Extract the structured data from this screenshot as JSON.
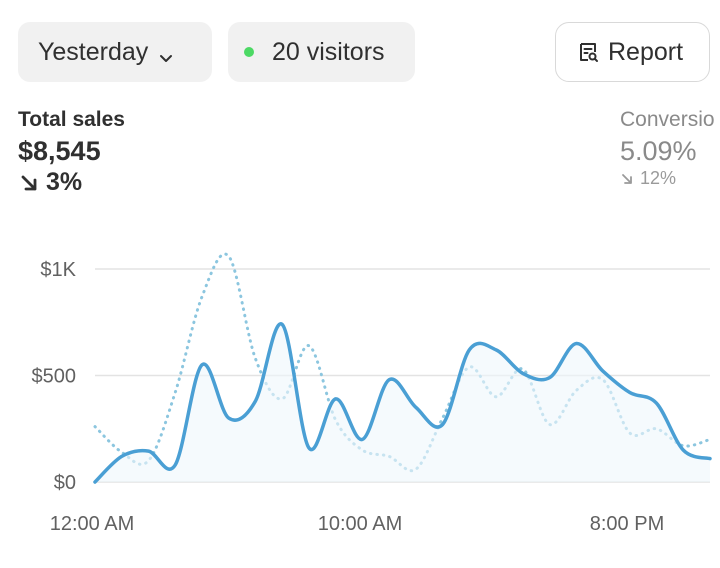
{
  "filters": {
    "date_label": "Yesterday",
    "visitors_label": "20 visitors",
    "visitors_dot_color": "#4cd964"
  },
  "report_button": {
    "label": "Report",
    "icon": "report-icon"
  },
  "metrics": {
    "total_sales": {
      "label": "Total sales",
      "value": "$8,545",
      "change": "3%",
      "direction": "down"
    },
    "conversion": {
      "label": "Conversio",
      "value": "5.09%",
      "change": "12%",
      "direction": "down"
    }
  },
  "chart_data": {
    "type": "line",
    "x_ticks": [
      "12:00 AM",
      "10:00 AM",
      "8:00 PM"
    ],
    "y_ticks": [
      "$1K",
      "$500",
      "$0"
    ],
    "ylim": [
      0,
      1000
    ],
    "grid": true,
    "series": [
      {
        "style": "solid",
        "color": "#4a9fd4",
        "values": [
          0,
          120,
          145,
          80,
          550,
          300,
          380,
          740,
          160,
          390,
          200,
          480,
          350,
          270,
          620,
          620,
          510,
          490,
          650,
          520,
          420,
          370,
          150,
          110
        ]
      },
      {
        "style": "dotted",
        "color": "#8cc6df",
        "values": [
          260,
          140,
          100,
          420,
          870,
          1060,
          580,
          390,
          640,
          290,
          150,
          120,
          60,
          300,
          540,
          400,
          530,
          270,
          430,
          480,
          230,
          250,
          170,
          200
        ]
      }
    ]
  }
}
